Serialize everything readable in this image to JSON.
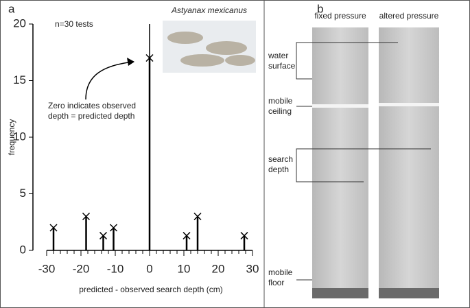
{
  "chart_data": {
    "type": "stem",
    "panel_label": "a",
    "annotation": "n=30 tests",
    "inset_title": "Astyanax mexicanus",
    "callout": [
      "Zero indicates observed",
      "depth = predicted depth"
    ],
    "xlabel": "predicted - observed search depth (cm)",
    "ylabel": "frequency",
    "x": [
      -28,
      -18.5,
      -13.5,
      -10.5,
      0,
      10.8,
      14,
      27.6
    ],
    "values": [
      2,
      3,
      1.3,
      2,
      17,
      1.3,
      3,
      1.3
    ],
    "xlim": [
      -30,
      30
    ],
    "ylim": [
      0,
      20
    ],
    "xticks": [
      -30,
      -20,
      -10,
      0,
      10,
      20,
      30
    ],
    "yticks": [
      0,
      5,
      10,
      15,
      20
    ],
    "xminorticks": [
      -28,
      -26,
      -24,
      -22,
      -18,
      -16,
      -14,
      -12,
      -8,
      -6,
      -4,
      -2,
      2,
      4,
      6,
      8,
      12,
      14,
      16,
      18,
      22,
      24,
      26,
      28
    ],
    "color": "#000000"
  },
  "panel_b": {
    "panel_label": "b",
    "columns": [
      "fixed pressure",
      "altered pressure"
    ],
    "labels": [
      [
        "water",
        "surface"
      ],
      [
        "mobile",
        "ceiling"
      ],
      [
        "search",
        "depth"
      ],
      [
        "mobile",
        "floor"
      ]
    ]
  }
}
